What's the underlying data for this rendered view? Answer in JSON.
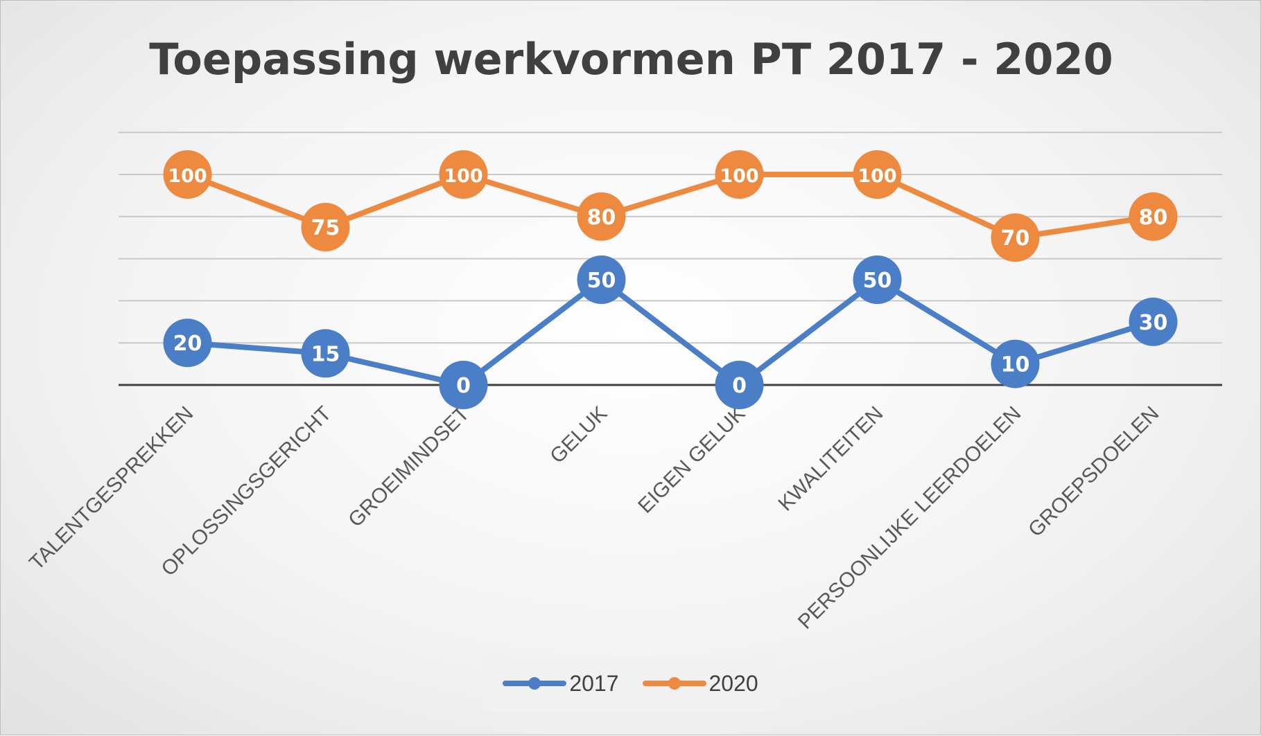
{
  "chart_data": {
    "type": "line",
    "title": "Toepassing werkvormen PT 2017 - 2020",
    "categories": [
      "TALENTGESPREKKEN",
      "OPLOSSINGSGERICHT",
      "GROEIMINDSET",
      "GELUK",
      "EIGEN GELUK",
      "KWALITEITEN",
      "PERSOONLIJKE LEERDOELEN",
      "GROEPSDOELEN"
    ],
    "series": [
      {
        "name": "2017",
        "color": "#4a7ec7",
        "values": [
          20,
          15,
          0,
          50,
          0,
          50,
          10,
          30
        ]
      },
      {
        "name": "2020",
        "color": "#ed8a3f",
        "values": [
          100,
          75,
          100,
          80,
          100,
          100,
          70,
          80
        ]
      }
    ],
    "ylim": [
      0,
      120
    ],
    "grid": true,
    "data_labels": true,
    "legend": "bottom"
  }
}
